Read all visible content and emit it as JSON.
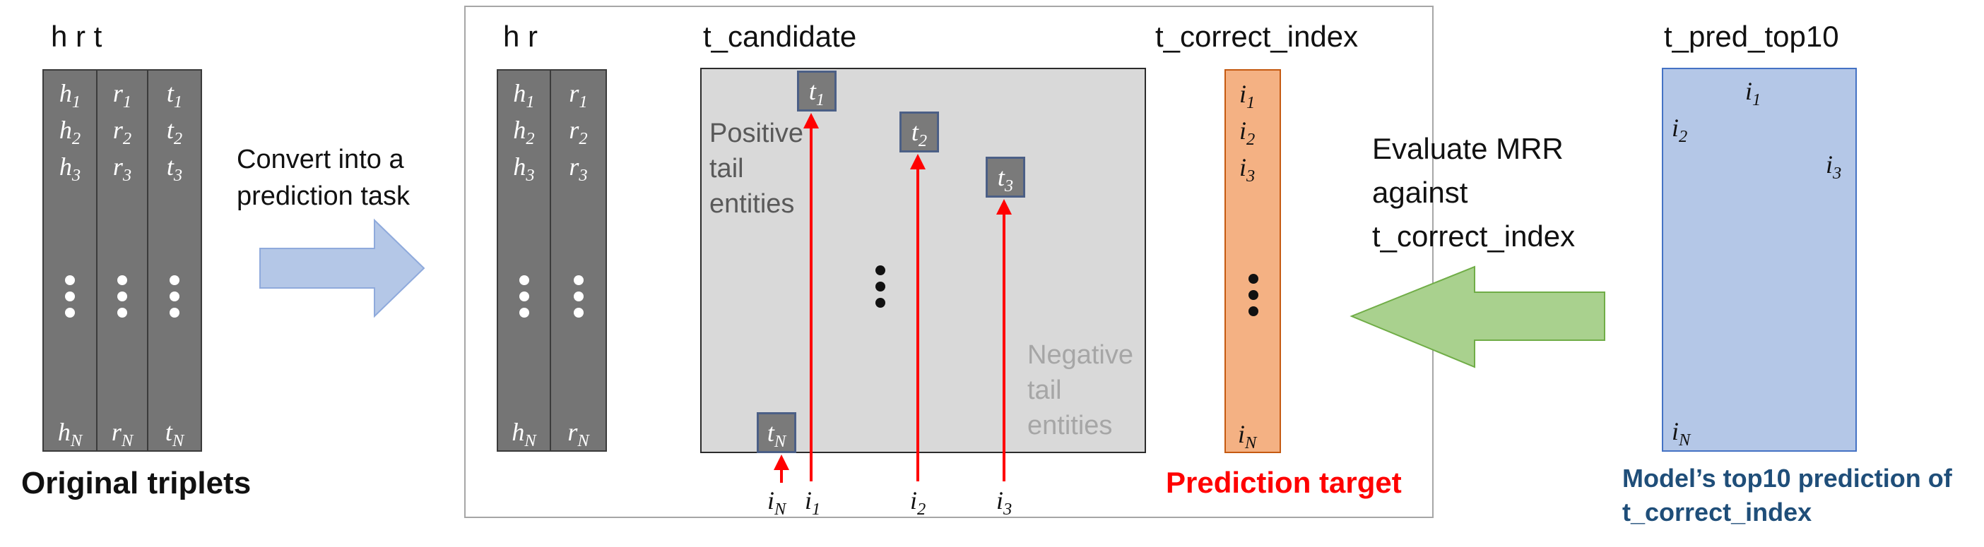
{
  "original": {
    "header": "h r t",
    "columns": [
      {
        "symbol": "h",
        "subs": [
          "1",
          "2",
          "3",
          "N"
        ]
      },
      {
        "symbol": "r",
        "subs": [
          "1",
          "2",
          "3",
          "N"
        ]
      },
      {
        "symbol": "t",
        "subs": [
          "1",
          "2",
          "3",
          "N"
        ]
      }
    ],
    "caption": "Original triplets"
  },
  "convert": {
    "line1": "Convert into a",
    "line2": "prediction task"
  },
  "task": {
    "hr_header": "h r",
    "hr_columns": [
      {
        "symbol": "h",
        "subs": [
          "1",
          "2",
          "3",
          "N"
        ]
      },
      {
        "symbol": "r",
        "subs": [
          "1",
          "2",
          "3",
          "N"
        ]
      }
    ],
    "candidate_header": "t_candidate",
    "positive_label": {
      "line1": "Positive",
      "line2": "tail",
      "line3": "entities"
    },
    "negative_label": {
      "line1": "Negative",
      "line2": "tail",
      "line3": "entities"
    },
    "positive_boxes": [
      {
        "symbol": "t",
        "sub": "1"
      },
      {
        "symbol": "t",
        "sub": "2"
      },
      {
        "symbol": "t",
        "sub": "3"
      },
      {
        "symbol": "t",
        "sub": "N"
      }
    ],
    "index_labels": [
      {
        "symbol": "i",
        "sub": "N"
      },
      {
        "symbol": "i",
        "sub": "1"
      },
      {
        "symbol": "i",
        "sub": "2"
      },
      {
        "symbol": "i",
        "sub": "3"
      }
    ],
    "correct_header": "t_correct_index",
    "correct_items": [
      {
        "symbol": "i",
        "sub": "1"
      },
      {
        "symbol": "i",
        "sub": "2"
      },
      {
        "symbol": "i",
        "sub": "3"
      },
      {
        "symbol": "i",
        "sub": "N"
      }
    ],
    "prediction_target": "Prediction target"
  },
  "evaluate": {
    "line1": "Evaluate MRR",
    "line2": "against",
    "line3": "t_correct_index"
  },
  "pred": {
    "header": "t_pred_top10",
    "items": [
      {
        "symbol": "i",
        "sub": "1"
      },
      {
        "symbol": "i",
        "sub": "2"
      },
      {
        "symbol": "i",
        "sub": "3"
      },
      {
        "symbol": "i",
        "sub": "N"
      }
    ],
    "caption_line1": "Model’s top10 prediction of",
    "caption_line2": "t_correct_index"
  },
  "colors": {
    "table_gray": "#757575",
    "candidate_bg": "#d9d9d9",
    "correct_orange": "#f4b183",
    "pred_blue": "#b4c7e7",
    "convert_arrow": "#b4c7e7",
    "evaluate_arrow": "#a9d18e",
    "red": "#ff0000",
    "caption_blue": "#1f4e79"
  }
}
